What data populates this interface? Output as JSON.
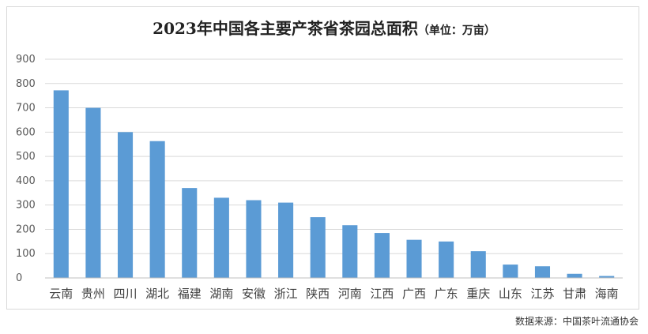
{
  "chart_data": {
    "type": "bar",
    "title": "2023年中国各主要产茶省茶园总面积",
    "subtitle": "（单位：万亩）",
    "xlabel": "",
    "ylabel": "",
    "categories": [
      "云南",
      "贵州",
      "四川",
      "湖北",
      "福建",
      "湖南",
      "安徽",
      "浙江",
      "陕西",
      "河南",
      "江西",
      "广西",
      "广东",
      "重庆",
      "山东",
      "江苏",
      "甘肃",
      "海南"
    ],
    "values": [
      772,
      700,
      600,
      563,
      370,
      330,
      320,
      310,
      250,
      217,
      185,
      157,
      150,
      110,
      55,
      48,
      17,
      8
    ],
    "ylim": [
      0,
      900
    ],
    "yticks": [
      0,
      100,
      200,
      300,
      400,
      500,
      600,
      700,
      800,
      900
    ],
    "grid": true,
    "legend": "none",
    "bar_color": "#5b9bd5",
    "grid_color": "#d9d9d9"
  },
  "source_note": "数据来源：中国茶叶流通协会"
}
